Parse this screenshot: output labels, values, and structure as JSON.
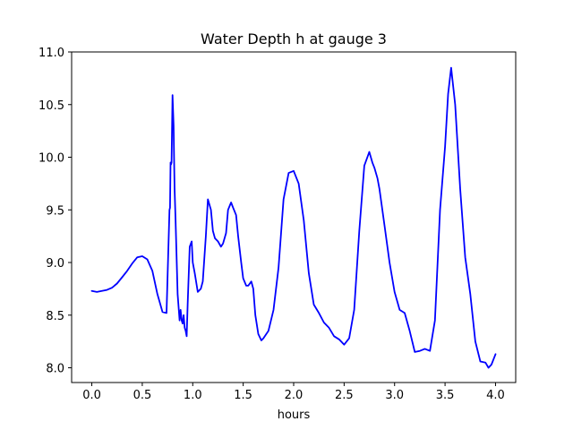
{
  "chart_data": {
    "type": "line",
    "title": "Water Depth h at gauge 3",
    "xlabel": "hours",
    "ylabel": "",
    "xlim": [
      -0.2,
      4.2
    ],
    "ylim": [
      7.86,
      11.0
    ],
    "xticks": [
      "0.0",
      "0.5",
      "1.0",
      "1.5",
      "2.0",
      "2.5",
      "3.0",
      "3.5",
      "4.0"
    ],
    "yticks": [
      "8.0",
      "8.5",
      "9.0",
      "9.5",
      "10.0",
      "10.5",
      "11.0"
    ],
    "grid": false,
    "colors": {
      "series": "#0000ff",
      "axes": "#000000",
      "background": "#ffffff"
    },
    "series": [
      {
        "x": [
          0.0,
          0.05,
          0.1,
          0.15,
          0.2,
          0.25,
          0.3,
          0.35,
          0.4,
          0.45,
          0.5,
          0.55,
          0.6,
          0.65,
          0.7,
          0.74,
          0.77,
          0.775,
          0.78,
          0.785,
          0.79,
          0.8,
          0.81,
          0.815,
          0.82,
          0.83,
          0.85,
          0.87,
          0.88,
          0.89,
          0.9,
          0.91,
          0.92,
          0.93,
          0.94,
          0.95,
          0.97,
          0.99,
          1.0,
          1.02,
          1.05,
          1.08,
          1.1,
          1.13,
          1.15,
          1.18,
          1.2,
          1.22,
          1.25,
          1.28,
          1.3,
          1.33,
          1.35,
          1.38,
          1.4,
          1.43,
          1.45,
          1.48,
          1.5,
          1.53,
          1.55,
          1.58,
          1.6,
          1.62,
          1.65,
          1.68,
          1.7,
          1.75,
          1.8,
          1.85,
          1.9,
          1.95,
          2.0,
          2.05,
          2.1,
          2.15,
          2.2,
          2.25,
          2.3,
          2.35,
          2.4,
          2.45,
          2.5,
          2.55,
          2.6,
          2.65,
          2.7,
          2.75,
          2.78,
          2.8,
          2.83,
          2.85,
          2.9,
          2.95,
          3.0,
          3.05,
          3.1,
          3.15,
          3.2,
          3.25,
          3.3,
          3.35,
          3.4,
          3.45,
          3.5,
          3.53,
          3.56,
          3.6,
          3.65,
          3.7,
          3.75,
          3.8,
          3.85,
          3.9,
          3.93,
          3.96,
          4.0
        ],
        "y": [
          8.73,
          8.72,
          8.73,
          8.74,
          8.76,
          8.8,
          8.86,
          8.92,
          8.99,
          9.05,
          9.06,
          9.03,
          8.92,
          8.7,
          8.53,
          8.52,
          9.5,
          9.52,
          9.95,
          9.93,
          9.95,
          10.59,
          10.3,
          10.0,
          9.7,
          9.4,
          8.7,
          8.45,
          8.55,
          8.45,
          8.42,
          8.5,
          8.38,
          8.35,
          8.3,
          8.6,
          9.15,
          9.2,
          9.0,
          8.9,
          8.72,
          8.75,
          8.82,
          9.25,
          9.6,
          9.5,
          9.3,
          9.23,
          9.2,
          9.15,
          9.18,
          9.28,
          9.5,
          9.57,
          9.52,
          9.45,
          9.25,
          9.0,
          8.85,
          8.78,
          8.78,
          8.82,
          8.75,
          8.5,
          8.32,
          8.26,
          8.28,
          8.35,
          8.55,
          8.95,
          9.6,
          9.85,
          9.87,
          9.75,
          9.4,
          8.9,
          8.6,
          8.52,
          8.43,
          8.38,
          8.3,
          8.27,
          8.22,
          8.28,
          8.55,
          9.3,
          9.92,
          10.05,
          9.95,
          9.9,
          9.8,
          9.7,
          9.35,
          9.0,
          8.72,
          8.55,
          8.52,
          8.35,
          8.15,
          8.16,
          8.18,
          8.16,
          8.45,
          9.5,
          10.1,
          10.6,
          10.85,
          10.5,
          9.7,
          9.05,
          8.7,
          8.25,
          8.06,
          8.05,
          8.0,
          8.03,
          8.13
        ]
      }
    ]
  }
}
